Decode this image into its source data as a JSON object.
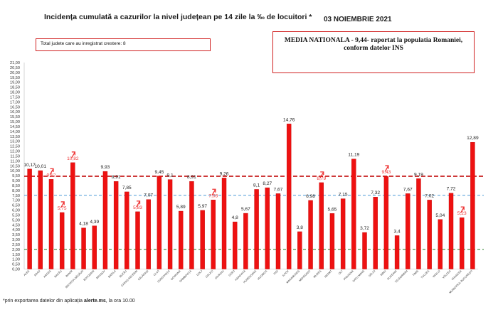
{
  "title": "Incidența cumulată a cazurilor la nivel județean pe 14 zile la ‰ de locuitori *",
  "date": "03 NOIEMBRIE 2021",
  "growth_box": "Total judete care au inregistrat crestere: 8",
  "national_box": "MEDIA NATIONALA - 9,44-  raportat la populatia Romaniei, conform datelor INS",
  "footnote_prefix": "*prin exportarea datelor din aplicația ",
  "footnote_bold": "alerte.ms",
  "footnote_suffix": ", la ora 10.00",
  "colors": {
    "bar": "#ee1111",
    "bar_edge": "#c00000",
    "label_normal": "#222222",
    "label_growth": "#ee3333",
    "arrow": "#ee3333",
    "line_national": "#c00000",
    "line_blue": "#4a9ad8",
    "line_green": "#3a8a3a",
    "axis_text": "#333333"
  },
  "chart_data": {
    "type": "bar",
    "title": "Incidența cumulată a cazurilor la nivel județean pe 14 zile la ‰ de locuitori *",
    "xlabel": "",
    "ylabel": "",
    "ylim": [
      0,
      21
    ],
    "y_tick_step": 0.5,
    "y_tick_labels": [
      "0,00",
      "0,50",
      "1,00",
      "1,50",
      "2,00",
      "2,50",
      "3,00",
      "3,50",
      "4,00",
      "4,50",
      "5,00",
      "5,50",
      "6,00",
      "6,50",
      "7,00",
      "7,50",
      "8,00",
      "8,50",
      "9,00",
      "9,50",
      "10,00",
      "10,50",
      "11,00",
      "11,50",
      "12,00",
      "12,50",
      "13,00",
      "13,50",
      "14,00",
      "14,50",
      "15,00",
      "15,50",
      "16,00",
      "16,50",
      "17,00",
      "17,50",
      "18,00",
      "18,50",
      "19,00",
      "19,50",
      "20,00",
      "20,50",
      "21,00"
    ],
    "categories": [
      "ALBA",
      "ARAD",
      "ARGEȘ",
      "BACĂU",
      "BIHOR",
      "BISTRIȚA-NĂSĂUD",
      "BOTOȘANI",
      "BRAȘOV",
      "BRĂILA",
      "BUZĂU",
      "CARAȘ-SEVERIN",
      "CĂLĂRAȘI",
      "CLUJ",
      "CONSTANȚA",
      "COVASNA",
      "DÂMBOVIȚA",
      "DOLJ",
      "GALAȚI",
      "GIURGIU",
      "GORJ",
      "HARGHITA",
      "HUNEDOARA",
      "IALOMIȚA",
      "IAȘI",
      "ILFOV",
      "MARAMUREȘ",
      "MEHEDINȚI",
      "MUREȘ",
      "NEAMȚ",
      "OLT",
      "PRAHOVA",
      "SATU MARE",
      "SĂLAJ",
      "SIBIU",
      "SUCEAVA",
      "TELEORMAN",
      "TIMIȘ",
      "TULCEA",
      "VASLUI",
      "VÂLCEA",
      "VRANCEA",
      "MUNICIPIUL BUCUREȘTI"
    ],
    "values": [
      10.17,
      10.01,
      9.12,
      5.75,
      10.82,
      4.18,
      4.39,
      9.93,
      8.91,
      7.85,
      5.83,
      7.07,
      9.45,
      9.1,
      5.89,
      8.91,
      5.97,
      7.03,
      9.26,
      4.8,
      5.67,
      8.1,
      8.27,
      7.67,
      14.76,
      3.8,
      6.98,
      8.79,
      5.65,
      7.15,
      11.19,
      3.72,
      7.32,
      9.43,
      3.4,
      7.67,
      9.19,
      7.02,
      5.04,
      7.72,
      5.23,
      12.89
    ],
    "value_labels": [
      "10,17",
      "10,01",
      "9,12",
      "5,75",
      "10,82",
      "4,18",
      "4,39",
      "9,93",
      "8,91",
      "7,85",
      "5,83",
      "7,07",
      "9,45",
      "9,1",
      "5,89",
      "8,91",
      "5,97",
      "7,03",
      "9,26",
      "4,8",
      "5,67",
      "8,1",
      "8,27",
      "7,67",
      "14,76",
      "3,8",
      "6,98",
      "8,79",
      "5,65",
      "7,15",
      "11,19",
      "3,72",
      "7,32",
      "9,43",
      "3,4",
      "7,67",
      "9,19",
      "7,02",
      "5,04",
      "7,72",
      "5,23",
      "12,89"
    ],
    "growth_indices": [
      2,
      3,
      4,
      10,
      17,
      27,
      33,
      40
    ],
    "reference_lines": [
      {
        "value": 9.44,
        "color": "#c00000",
        "style": "dashed"
      },
      {
        "value": 7.5,
        "color": "#4a9ad8",
        "style": "dashed"
      },
      {
        "value": 2.0,
        "color": "#3a8a3a",
        "style": "dashed"
      }
    ],
    "grid": false,
    "legend": "none"
  }
}
